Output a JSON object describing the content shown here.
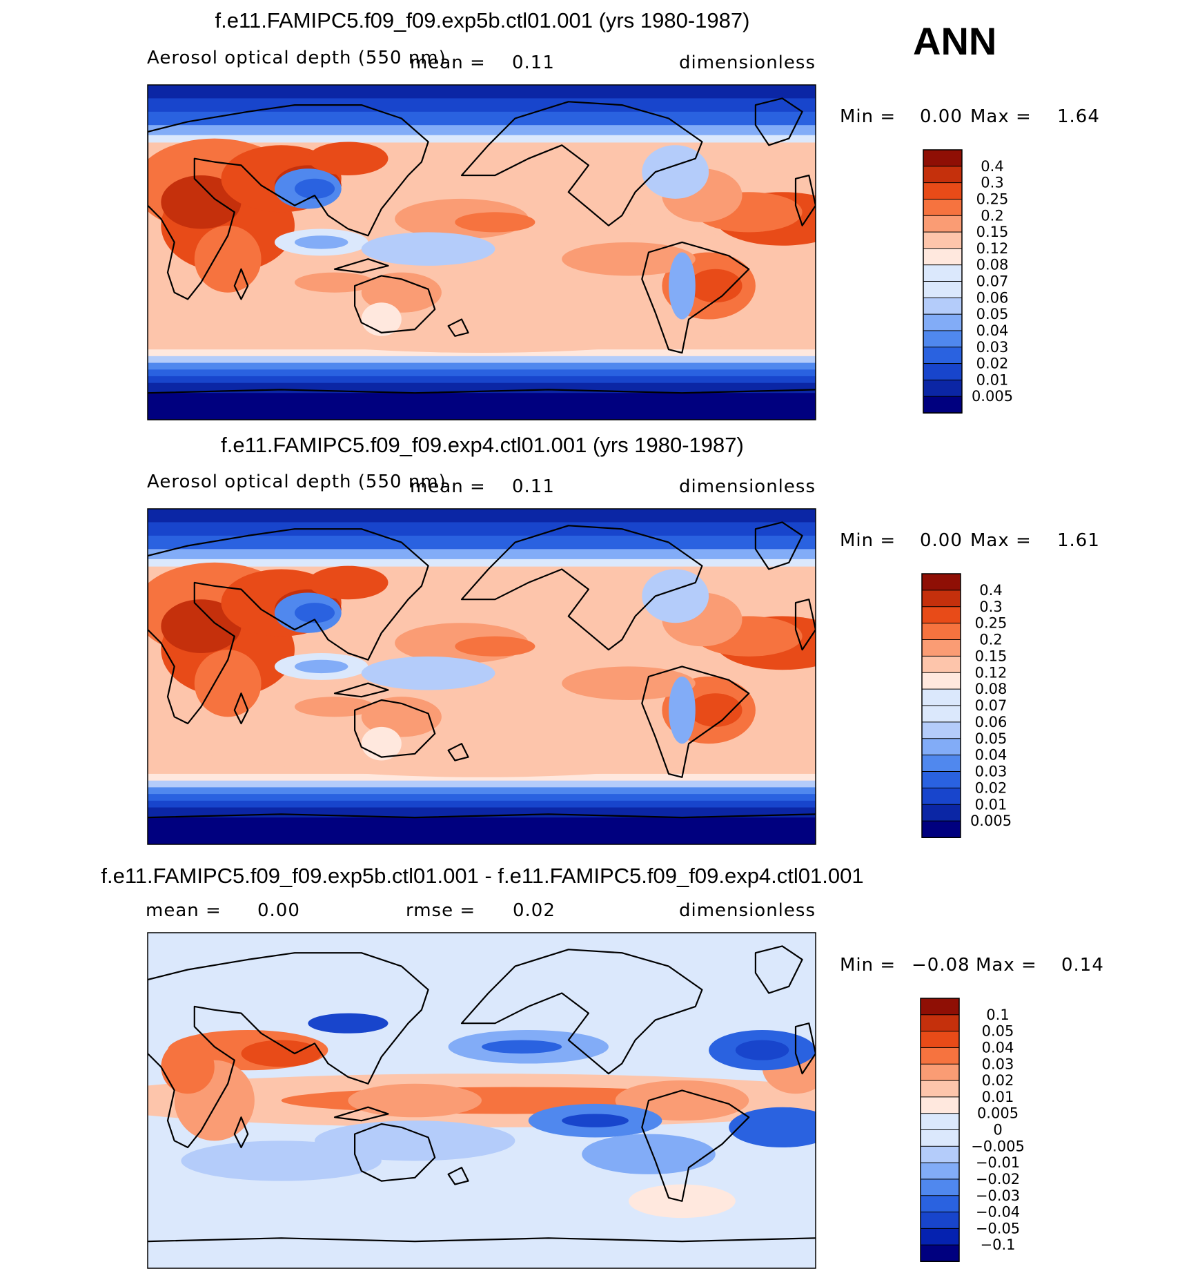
{
  "season": "ANN",
  "palettes": {
    "main": [
      "#00007f",
      "#0b26a5",
      "#1845cc",
      "#2a62e0",
      "#5088ee",
      "#82acf7",
      "#b4ccfa",
      "#dbe8fc",
      "#ffe8de",
      "#fdc5ab",
      "#fa9c74",
      "#f6733f",
      "#e84b18",
      "#c5300c",
      "#8f0f05"
    ],
    "diff": [
      "#00007f",
      "#0522b0",
      "#1845cc",
      "#2a62e0",
      "#5088ee",
      "#82acf7",
      "#b4ccfa",
      "#dbe8fc",
      "#ffe8de",
      "#fdc5ab",
      "#fa9c74",
      "#f6733f",
      "#e84b18",
      "#c5300c",
      "#8f0f05"
    ]
  },
  "panels": [
    {
      "title": "f.e11.FAMIPC5.f09_f09.exp5b.ctl01.001 (yrs 1980-1987)",
      "left_label": "Aerosol optical depth (550 nm)",
      "mean_label": "mean =",
      "mean_value": "0.11",
      "units": "dimensionless",
      "min_label": "Min =",
      "min_value": "0.00",
      "max_label": "Max =",
      "max_value": "1.64",
      "colorbar_levels": [
        "0.4",
        "0.3",
        "0.25",
        "0.2",
        "0.15",
        "0.12",
        "0.08",
        "0.07",
        "0.06",
        "0.05",
        "0.04",
        "0.03",
        "0.02",
        "0.01",
        "0.005"
      ]
    },
    {
      "title": "f.e11.FAMIPC5.f09_f09.exp4.ctl01.001 (yrs 1980-1987)",
      "left_label": "Aerosol optical depth (550 nm)",
      "mean_label": "mean =",
      "mean_value": "0.11",
      "units": "dimensionless",
      "min_label": "Min =",
      "min_value": "0.00",
      "max_label": "Max =",
      "max_value": "1.61",
      "colorbar_levels": [
        "0.4",
        "0.3",
        "0.25",
        "0.2",
        "0.15",
        "0.12",
        "0.08",
        "0.07",
        "0.06",
        "0.05",
        "0.04",
        "0.03",
        "0.02",
        "0.01",
        "0.005"
      ]
    },
    {
      "title": "f.e11.FAMIPC5.f09_f09.exp5b.ctl01.001 - f.e11.FAMIPC5.f09_f09.exp4.ctl01.001",
      "mean_label": "mean =",
      "mean_value": "0.00",
      "rmse_label": "rmse =",
      "rmse_value": "0.02",
      "units": "dimensionless",
      "min_label": "Min =",
      "min_value": "−0.08",
      "max_label": "Max =",
      "max_value": "0.14",
      "colorbar_levels": [
        "0.1",
        "0.05",
        "0.04",
        "0.03",
        "0.02",
        "0.01",
        "0.005",
        "0",
        "−0.005",
        "−0.01",
        "−0.02",
        "−0.03",
        "−0.04",
        "−0.05",
        "−0.1"
      ]
    }
  ],
  "chart_data": [
    {
      "type": "heatmap",
      "title": "f.e11.FAMIPC5.f09_f09.exp5b.ctl01.001 (yrs 1980-1987)",
      "variable": "Aerosol optical depth (550 nm)",
      "units": "dimensionless",
      "mean": 0.11,
      "min": 0.0,
      "max": 1.64,
      "xlim": [
        0,
        360
      ],
      "ylim": [
        -90,
        90
      ],
      "contour_levels": [
        0.005,
        0.01,
        0.02,
        0.03,
        0.04,
        0.05,
        0.06,
        0.07,
        0.08,
        0.12,
        0.15,
        0.2,
        0.25,
        0.3,
        0.4
      ]
    },
    {
      "type": "heatmap",
      "title": "f.e11.FAMIPC5.f09_f09.exp4.ctl01.001 (yrs 1980-1987)",
      "variable": "Aerosol optical depth (550 nm)",
      "units": "dimensionless",
      "mean": 0.11,
      "min": 0.0,
      "max": 1.61,
      "xlim": [
        0,
        360
      ],
      "ylim": [
        -90,
        90
      ],
      "contour_levels": [
        0.005,
        0.01,
        0.02,
        0.03,
        0.04,
        0.05,
        0.06,
        0.07,
        0.08,
        0.12,
        0.15,
        0.2,
        0.25,
        0.3,
        0.4
      ]
    },
    {
      "type": "heatmap",
      "title": "f.e11.FAMIPC5.f09_f09.exp5b.ctl01.001 - f.e11.FAMIPC5.f09_f09.exp4.ctl01.001",
      "units": "dimensionless",
      "mean": 0.0,
      "rmse": 0.02,
      "min": -0.08,
      "max": 0.14,
      "xlim": [
        0,
        360
      ],
      "ylim": [
        -90,
        90
      ],
      "contour_levels": [
        -0.1,
        -0.05,
        -0.04,
        -0.03,
        -0.02,
        -0.01,
        -0.005,
        0,
        0.005,
        0.01,
        0.02,
        0.03,
        0.04,
        0.05,
        0.1
      ]
    }
  ]
}
